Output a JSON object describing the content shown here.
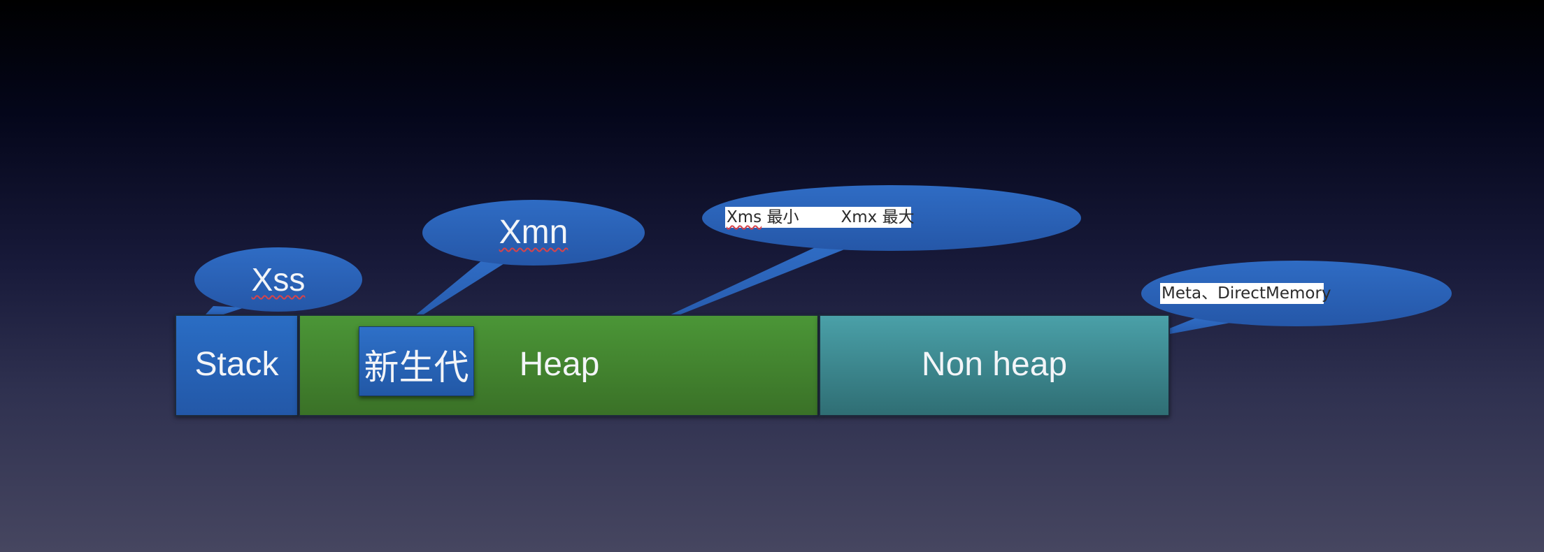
{
  "blocks": {
    "stack": "Stack",
    "heap": "Heap",
    "non_heap": "Non heap",
    "young_gen": "新生代"
  },
  "callouts": {
    "xss": "Xss",
    "xmn": "Xmn",
    "xms_label": "Xms",
    "xms_min": "最小",
    "xmx_label": "Xmx",
    "xmx_max": "最大",
    "meta": "Meta、DirectMemory"
  },
  "colors": {
    "stack": "#2a63b8",
    "heap": "#438430",
    "non_heap": "#3d878e",
    "callout": "#2b64b8"
  }
}
